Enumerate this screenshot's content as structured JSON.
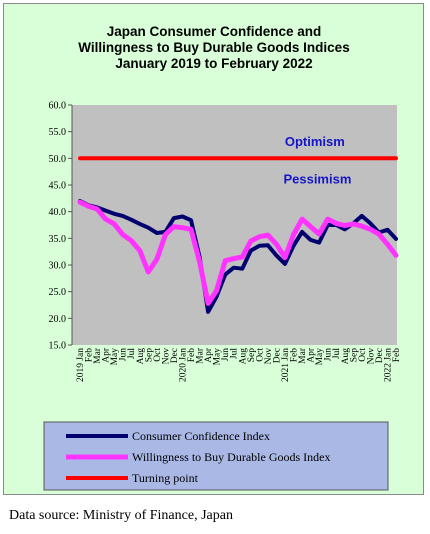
{
  "chart_data": {
    "type": "line",
    "title_lines": [
      "Japan Consumer Confidence and",
      "Willingness to Buy Durable Goods Indices",
      "January 2019 to February 2022"
    ],
    "ylim": [
      15,
      60
    ],
    "yticks": [
      "60.0",
      "55.0",
      "50.0",
      "45.0",
      "40.0",
      "35.0",
      "30.0",
      "25.0",
      "20.0",
      "15.0"
    ],
    "ytick_values": [
      60,
      55,
      50,
      45,
      40,
      35,
      30,
      25,
      20,
      15
    ],
    "x": [
      "2019 Jan",
      "Feb",
      "Mar",
      "Apr",
      "May",
      "Jun",
      "Jul",
      "Aug",
      "Sep",
      "Oct",
      "Nov",
      "Dec",
      "2020 Jan",
      "Feb",
      "Mar",
      "Apr",
      "May",
      "Jun",
      "Jul",
      "Aug",
      "Sep",
      "Oct",
      "Nov",
      "Dec",
      "2021 Jan",
      "Feb",
      "Mar",
      "Apr",
      "May",
      "Jun",
      "Jul",
      "Aug",
      "Sep",
      "Oct",
      "Nov",
      "Dec",
      "2022 Jan",
      "Feb"
    ],
    "series": [
      {
        "name": "Consumer Confidence Index",
        "color": "#00006e",
        "values": [
          42.0,
          41.2,
          40.8,
          40.2,
          39.6,
          39.2,
          38.5,
          37.7,
          37.0,
          36.0,
          36.2,
          38.8,
          39.1,
          38.4,
          31.5,
          21.2,
          24.1,
          28.2,
          29.5,
          29.3,
          32.7,
          33.6,
          33.7,
          31.8,
          30.2,
          33.6,
          36.2,
          34.7,
          34.2,
          37.5,
          37.5,
          36.7,
          37.8,
          39.2,
          37.8,
          36.1,
          36.6,
          34.9
        ]
      },
      {
        "name": "Willingness to Buy Durable Goods Index",
        "color": "#ff33ff",
        "values": [
          41.8,
          41.0,
          40.5,
          38.6,
          37.7,
          35.7,
          34.6,
          32.7,
          28.7,
          31.1,
          35.7,
          37.2,
          37.0,
          36.7,
          30.6,
          22.8,
          25.2,
          30.8,
          31.2,
          31.5,
          34.5,
          35.3,
          35.6,
          33.9,
          31.4,
          35.7,
          38.6,
          37.2,
          35.8,
          38.6,
          37.8,
          37.4,
          37.7,
          37.3,
          36.7,
          35.8,
          33.9,
          31.8
        ]
      },
      {
        "name": "Turning point",
        "color": "#ff0000",
        "values": [
          50,
          50,
          50,
          50,
          50,
          50,
          50,
          50,
          50,
          50,
          50,
          50,
          50,
          50,
          50,
          50,
          50,
          50,
          50,
          50,
          50,
          50,
          50,
          50,
          50,
          50,
          50,
          50,
          50,
          50,
          50,
          50,
          50,
          50,
          50,
          50,
          50,
          50
        ]
      }
    ],
    "annotations": [
      {
        "text": "Optimism",
        "x_index": 27.5,
        "y": 52.3
      },
      {
        "text": "Pessimism",
        "x_index": 27.8,
        "y": 45.3
      }
    ],
    "grid": false,
    "legend": "bottom",
    "plot_background": "#c0c0c0",
    "figure_background": "#d9ffd9"
  },
  "source_note": "Data source: Ministry of Finance, Japan"
}
